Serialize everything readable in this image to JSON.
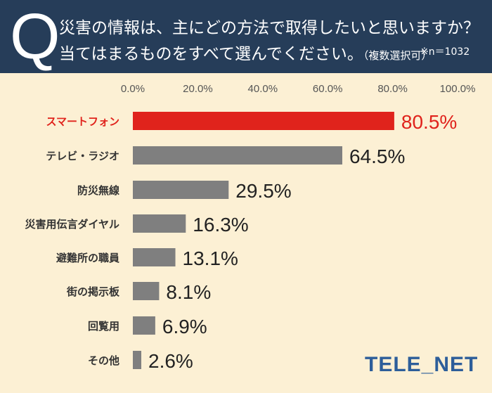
{
  "header": {
    "q": "Q",
    "line1": "災害の情報は、主にどの方法で取得したいと思いますか？",
    "line2": "当てはまるものをすべて選んでください。",
    "note": "（複数選択可）",
    "n": "※n＝1032"
  },
  "logo": "TELENET",
  "colors": {
    "highlight": "#e0231c",
    "bar": "#7f7f7f",
    "header": "#263d59"
  },
  "chart_data": {
    "type": "bar",
    "orientation": "horizontal",
    "categories": [
      "スマートフォン",
      "テレビ・ラジオ",
      "防災無線",
      "災害用伝言ダイヤル",
      "避難所の職員",
      "街の掲示板",
      "回覧用",
      "その他"
    ],
    "values": [
      80.5,
      64.5,
      29.5,
      16.3,
      13.1,
      8.1,
      6.9,
      2.6
    ],
    "labels": [
      "80.5%",
      "64.5%",
      "29.5%",
      "16.3%",
      "13.1%",
      "8.1%",
      "6.9%",
      "2.6%"
    ],
    "xlim": [
      0,
      100
    ],
    "ticks": [
      "0.0%",
      "20.0%",
      "40.0%",
      "60.0%",
      "80.0%",
      "100.0%"
    ],
    "highlight_index": 0,
    "grid": false
  }
}
